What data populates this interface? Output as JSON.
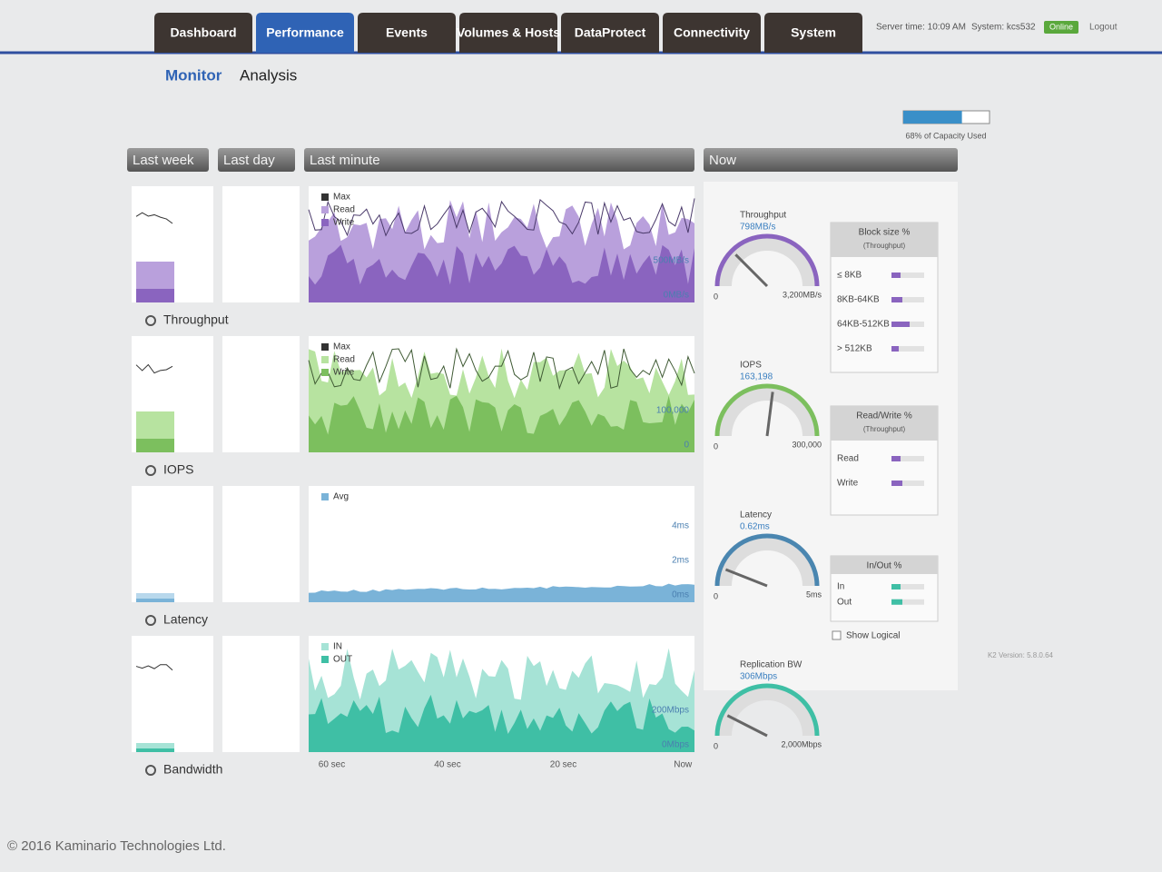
{
  "header": {
    "tabs": [
      "Dashboard",
      "Performance",
      "Events",
      "Volumes & Hosts",
      "DataProtect",
      "Connectivity",
      "System"
    ],
    "server_time": "Server time: 10:09 AM",
    "system": "System: kcs532",
    "status": "Online",
    "logout": "Logout"
  },
  "subtabs": [
    "Monitor",
    "Analysis"
  ],
  "capacity": {
    "percent": 68,
    "label": "68% of Capacity Used"
  },
  "periods": [
    "Last week",
    "Last day",
    "Last minute",
    "Now"
  ],
  "rows": [
    {
      "label": "Throughput",
      "legend": [
        "Max",
        "Read",
        "Write"
      ],
      "y_labels": [
        "500MB/s",
        "0MB/s"
      ]
    },
    {
      "label": "IOPS",
      "legend": [
        "Max",
        "Read",
        "Write"
      ],
      "y_labels": [
        "100,000",
        "0"
      ]
    },
    {
      "label": "Latency",
      "legend": [
        "Avg"
      ],
      "y_labels": [
        "4ms",
        "2ms",
        "0ms"
      ]
    },
    {
      "label": "Bandwidth",
      "legend": [
        "IN",
        "OUT"
      ],
      "y_labels": [
        "200Mbps",
        "0Mbps"
      ]
    }
  ],
  "x_labels": [
    "60 sec",
    "40 sec",
    "20 sec",
    "Now"
  ],
  "gauges": [
    {
      "title": "Throughput",
      "value": "798MB/s",
      "min": "0",
      "max": "3,200MB/s"
    },
    {
      "title": "IOPS",
      "value": "163,198",
      "min": "0",
      "max": "300,000"
    },
    {
      "title": "Latency",
      "value": "0.62ms",
      "min": "0",
      "max": "5ms"
    },
    {
      "title": "Replication BW",
      "value": "306Mbps",
      "min": "0",
      "max": "2,000Mbps"
    }
  ],
  "block_size": {
    "title": "Block size %",
    "subtitle": "(Throughput)",
    "items": [
      "≤ 8KB",
      "8KB-64KB",
      "64KB-512KB",
      "> 512KB"
    ]
  },
  "read_write": {
    "title": "Read/Write %",
    "subtitle": "(Throughput)",
    "items": [
      "Read",
      "Write"
    ]
  },
  "in_out": {
    "title": "In/Out %",
    "items": [
      "In",
      "Out"
    ],
    "checkbox": "Show Logical"
  },
  "version": "K2 Version: 5.8.0.64",
  "footer": "© 2016 Kaminario Technologies Ltd."
}
